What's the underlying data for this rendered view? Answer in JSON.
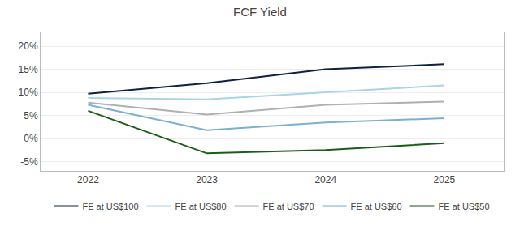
{
  "chart_data": {
    "type": "line",
    "title": "FCF Yield",
    "x": [
      2022,
      2023,
      2024,
      2025
    ],
    "series": [
      {
        "name": "FE at US$100",
        "color": "#0d2240",
        "values": [
          0.097,
          0.12,
          0.15,
          0.161
        ]
      },
      {
        "name": "FE at US$80",
        "color": "#a8d4e6",
        "values": [
          0.088,
          0.085,
          0.1,
          0.115
        ]
      },
      {
        "name": "FE at US$70",
        "color": "#b0b0b0",
        "values": [
          0.078,
          0.052,
          0.073,
          0.08
        ]
      },
      {
        "name": "FE at US$60",
        "color": "#7ab0d0",
        "values": [
          0.073,
          0.018,
          0.035,
          0.044
        ]
      },
      {
        "name": "FE at US$50",
        "color": "#1a5c1a",
        "values": [
          0.06,
          -0.032,
          -0.025,
          -0.01
        ]
      }
    ],
    "xlim": [
      2021.6,
      2025.5
    ],
    "xticks": [
      2022,
      2023,
      2024,
      2025
    ],
    "ylim": [
      -0.07,
      0.23
    ],
    "yticks": [
      {
        "value": -0.05,
        "label": "-5%"
      },
      {
        "value": 0.0,
        "label": "0%"
      },
      {
        "value": 0.05,
        "label": "5%"
      },
      {
        "value": 0.1,
        "label": "10%"
      },
      {
        "value": 0.15,
        "label": "15%"
      },
      {
        "value": 0.2,
        "label": "20%"
      }
    ],
    "grid": true,
    "legend": "bottom"
  }
}
